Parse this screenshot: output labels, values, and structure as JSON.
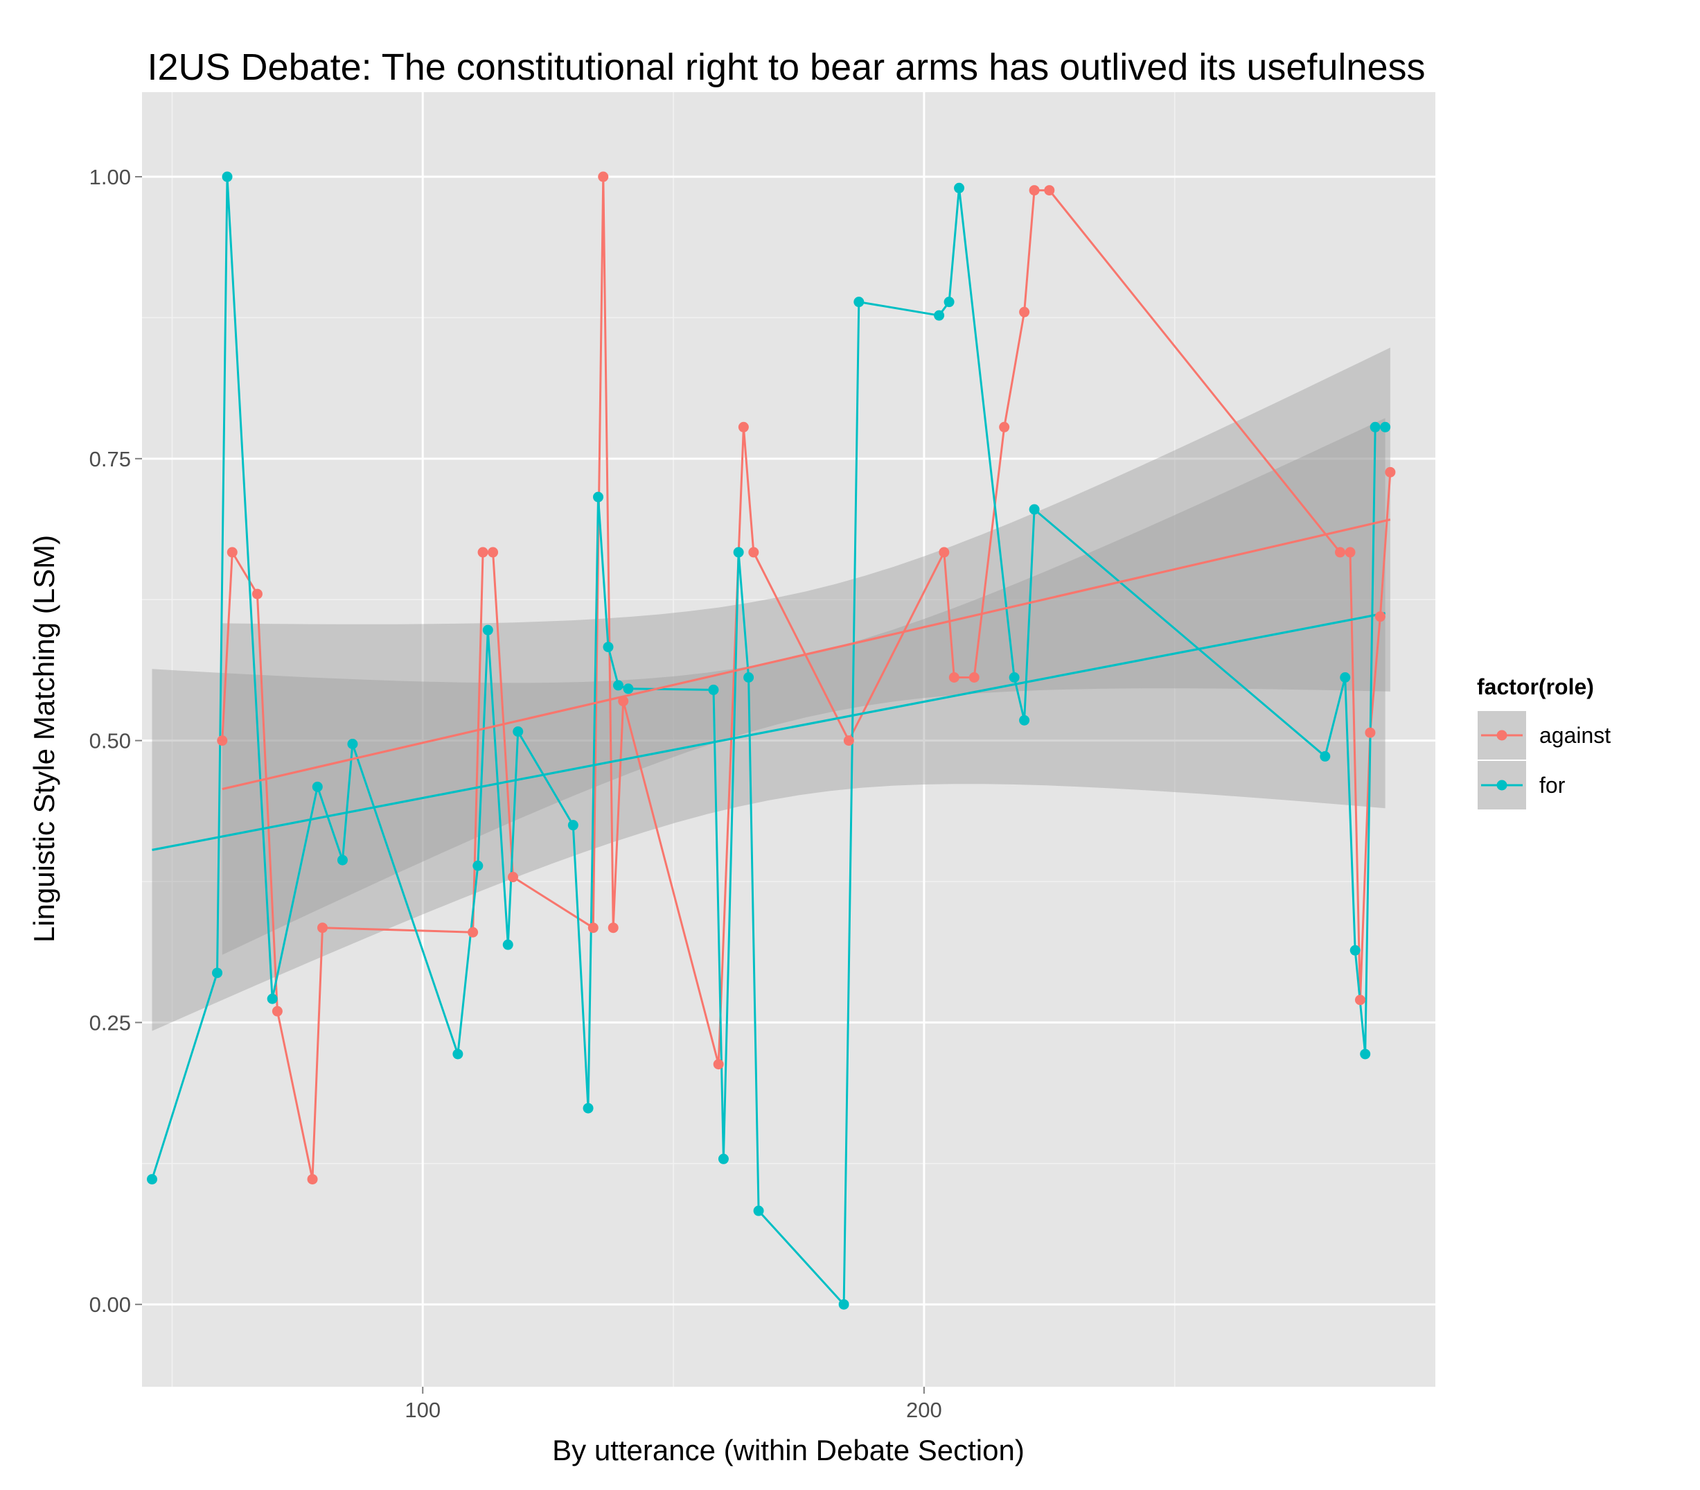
{
  "chart_data": {
    "type": "line",
    "title": "I2US Debate: The constitutional right to bear arms has outlived its usefulness",
    "xlabel": "By utterance (within Debate Section)",
    "ylabel": "Linguistic Style Matching (LSM)",
    "xlim": [
      44,
      302
    ],
    "ylim": [
      -0.073,
      1.075
    ],
    "x_ticks": [
      100,
      200
    ],
    "x_tick_labels": [
      "100",
      "200"
    ],
    "x_minor_ticks": [
      50,
      150,
      250
    ],
    "y_ticks": [
      0,
      0.25,
      0.5,
      0.75,
      1.0
    ],
    "y_tick_labels": [
      "0.00",
      "0.25",
      "0.50",
      "0.75",
      "1.00"
    ],
    "y_minor_ticks": [
      0.125,
      0.375,
      0.625,
      0.875
    ],
    "grid": true,
    "legend": {
      "title": "factor(role)",
      "position": "right",
      "entries": [
        "against",
        "for"
      ]
    },
    "series": [
      {
        "name": "against",
        "color": "#f8766d",
        "points": [
          [
            60,
            0.5
          ],
          [
            62,
            0.667
          ],
          [
            67,
            0.63
          ],
          [
            71,
            0.26
          ],
          [
            78,
            0.111
          ],
          [
            80,
            0.334
          ],
          [
            110,
            0.33
          ],
          [
            112,
            0.667
          ],
          [
            114,
            0.667
          ],
          [
            118,
            0.379
          ],
          [
            134,
            0.334
          ],
          [
            136,
            1.0
          ],
          [
            138,
            0.334
          ],
          [
            140,
            0.535
          ],
          [
            159,
            0.213
          ],
          [
            164,
            0.778
          ],
          [
            166,
            0.667
          ],
          [
            185,
            0.5
          ],
          [
            204,
            0.667
          ],
          [
            206,
            0.556
          ],
          [
            210,
            0.556
          ],
          [
            216,
            0.778
          ],
          [
            220,
            0.88
          ],
          [
            222,
            0.988
          ],
          [
            225,
            0.988
          ],
          [
            283,
            0.667
          ],
          [
            285,
            0.667
          ],
          [
            287,
            0.27
          ],
          [
            289,
            0.507
          ],
          [
            291,
            0.61
          ],
          [
            293,
            0.738
          ]
        ],
        "trend": {
          "x": [
            60,
            293
          ],
          "y": [
            0.457,
            0.696
          ],
          "ci_lower": [
            0.31,
            0.545
          ],
          "ci_upper": [
            0.604,
            0.85
          ]
        }
      },
      {
        "name": "for",
        "color": "#00bfc4",
        "points": [
          [
            46,
            0.111
          ],
          [
            59,
            0.294
          ],
          [
            61,
            1.0
          ],
          [
            70,
            0.271
          ],
          [
            79,
            0.459
          ],
          [
            84,
            0.394
          ],
          [
            86,
            0.497
          ],
          [
            107,
            0.222
          ],
          [
            111,
            0.389
          ],
          [
            113,
            0.598
          ],
          [
            117,
            0.319
          ],
          [
            119,
            0.508
          ],
          [
            130,
            0.425
          ],
          [
            133,
            0.174
          ],
          [
            135,
            0.716
          ],
          [
            137,
            0.583
          ],
          [
            139,
            0.549
          ],
          [
            141,
            0.546
          ],
          [
            158,
            0.545
          ],
          [
            160,
            0.129
          ],
          [
            163,
            0.667
          ],
          [
            165,
            0.556
          ],
          [
            167,
            0.083
          ],
          [
            184,
            0.0
          ],
          [
            187,
            0.889
          ],
          [
            203,
            0.877
          ],
          [
            205,
            0.889
          ],
          [
            207,
            0.99
          ],
          [
            218,
            0.556
          ],
          [
            220,
            0.518
          ],
          [
            222,
            0.705
          ],
          [
            280,
            0.486
          ],
          [
            284,
            0.556
          ],
          [
            286,
            0.314
          ],
          [
            288,
            0.222
          ],
          [
            290,
            0.778
          ],
          [
            292,
            0.778
          ]
        ],
        "trend": {
          "x": [
            46,
            292
          ],
          "y": [
            0.403,
            0.613
          ],
          "ci_lower": [
            0.242,
            0.439
          ],
          "ci_upper": [
            0.563,
            0.785
          ]
        }
      }
    ]
  }
}
